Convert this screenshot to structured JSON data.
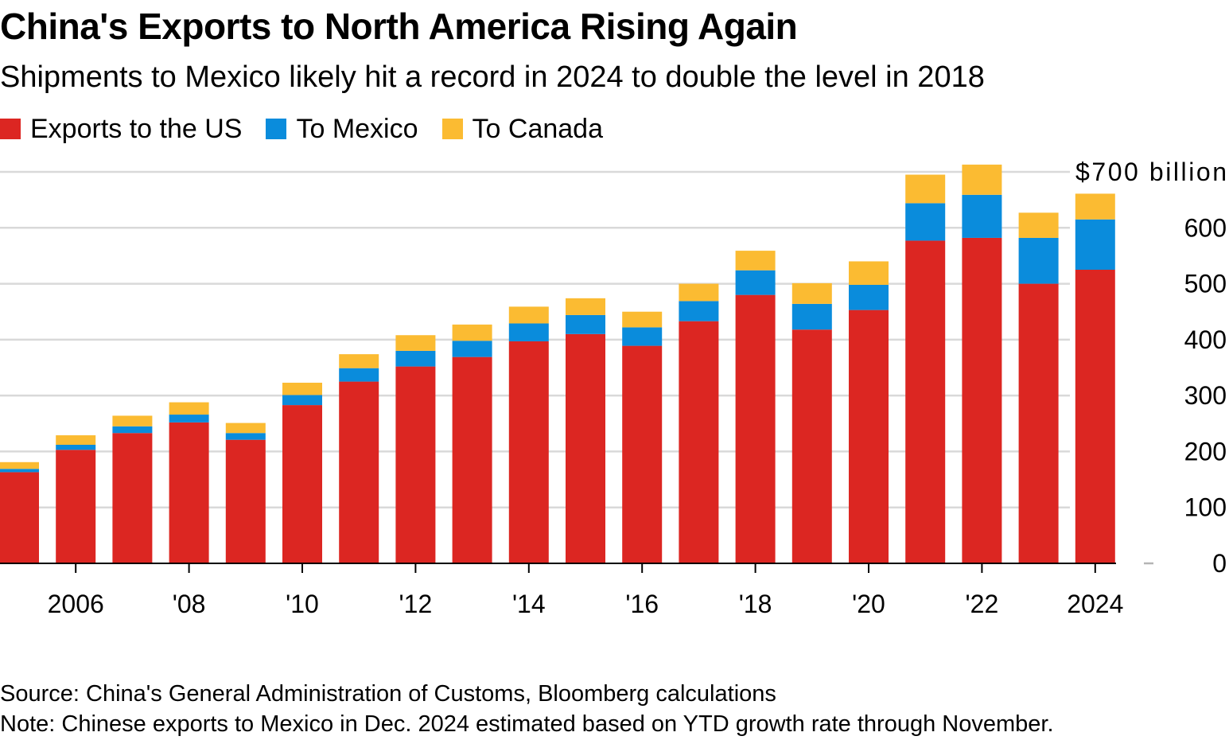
{
  "title": "China's Exports to North America Rising Again",
  "subtitle": "Shipments to Mexico likely hit a record in 2024 to double the level in 2018",
  "source": "Source: China's General Administration of Customs, Bloomberg calculations",
  "note": "Note: Chinese exports to Mexico in Dec. 2024 estimated based on YTD growth rate through November.",
  "colors": {
    "us": "#dc2622",
    "mexico": "#0a8cdc",
    "canada": "#fbbb32",
    "grid": "#d9d9d9",
    "axis": "#000000"
  },
  "legend": [
    {
      "label": "Exports to the US",
      "color": "#dc2622"
    },
    {
      "label": "To Mexico",
      "color": "#0a8cdc"
    },
    {
      "label": "To Canada",
      "color": "#fbbb32"
    }
  ],
  "chart_data": {
    "type": "bar",
    "stacked": true,
    "x": [
      2005,
      2006,
      2007,
      2008,
      2009,
      2010,
      2011,
      2012,
      2013,
      2014,
      2015,
      2016,
      2017,
      2018,
      2019,
      2020,
      2021,
      2022,
      2023,
      2024
    ],
    "x_tick_labels": [
      {
        "year": 2006,
        "label": "2006"
      },
      {
        "year": 2008,
        "label": "'08"
      },
      {
        "year": 2010,
        "label": "'10"
      },
      {
        "year": 2012,
        "label": "'12"
      },
      {
        "year": 2014,
        "label": "'14"
      },
      {
        "year": 2016,
        "label": "'16"
      },
      {
        "year": 2018,
        "label": "'18"
      },
      {
        "year": 2020,
        "label": "'20"
      },
      {
        "year": 2022,
        "label": "'22"
      },
      {
        "year": 2024,
        "label": "2024"
      }
    ],
    "series": [
      {
        "name": "Exports to the US",
        "values": [
          163,
          203,
          233,
          252,
          221,
          283,
          325,
          352,
          369,
          397,
          410,
          389,
          433,
          480,
          418,
          453,
          577,
          582,
          500,
          525
        ]
      },
      {
        "name": "To Mexico",
        "values": [
          6,
          9,
          12,
          14,
          12,
          18,
          24,
          28,
          29,
          32,
          34,
          33,
          36,
          44,
          46,
          45,
          67,
          77,
          82,
          90
        ]
      },
      {
        "name": "To Canada",
        "values": [
          12,
          17,
          19,
          22,
          18,
          22,
          25,
          28,
          29,
          30,
          30,
          28,
          31,
          35,
          37,
          42,
          51,
          54,
          45,
          46
        ]
      }
    ],
    "y_ticks": [
      {
        "value": 700,
        "label": "$700 billion"
      },
      {
        "value": 600,
        "label": "600"
      },
      {
        "value": 500,
        "label": "500"
      },
      {
        "value": 400,
        "label": "400"
      },
      {
        "value": 300,
        "label": "300"
      },
      {
        "value": 200,
        "label": "200"
      },
      {
        "value": 100,
        "label": "100"
      },
      {
        "value": 0,
        "label": "0"
      }
    ],
    "ylim": [
      0,
      700
    ],
    "y_axis_side": "right",
    "grid": true,
    "legend_position": "top-left"
  }
}
